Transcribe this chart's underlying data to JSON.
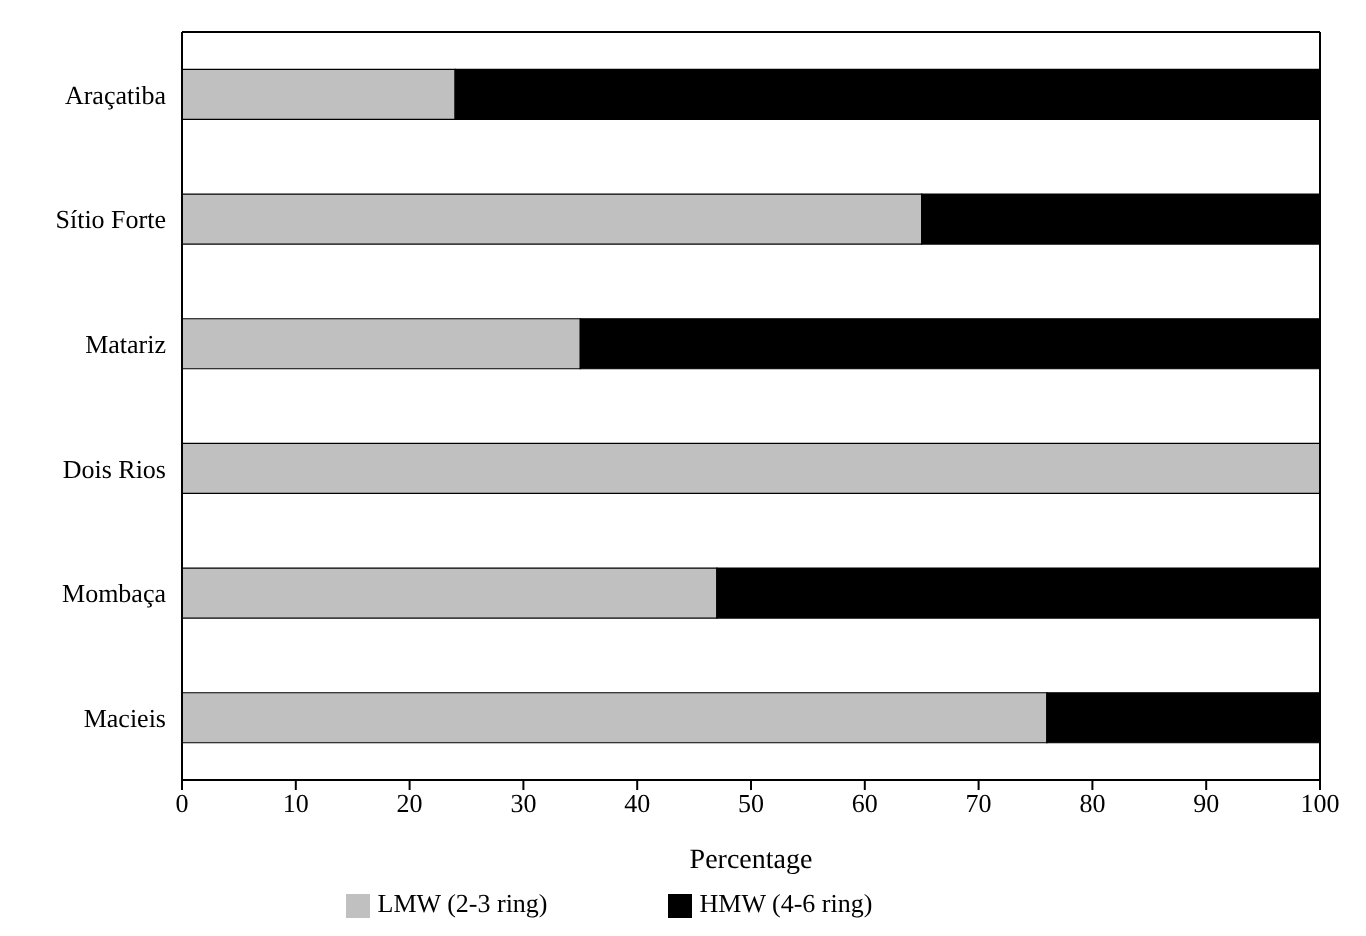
{
  "chart_data": {
    "type": "bar",
    "orientation": "horizontal",
    "stacked": true,
    "xlabel": "Percentage",
    "categories": [
      "Araçatiba",
      "Sítio Forte",
      "Matariz",
      "Dois Rios",
      "Mombaça",
      "Macieis"
    ],
    "series": [
      {
        "name": "LMW (2-3 ring)",
        "color": "#c0c0c0",
        "values": [
          24,
          65,
          35,
          100,
          47,
          76
        ]
      },
      {
        "name": "HMW (4-6 ring)",
        "color": "#000000",
        "values": [
          76,
          35,
          65,
          0,
          53,
          24
        ]
      }
    ],
    "xlim": [
      0,
      100
    ],
    "xticks": [
      0,
      10,
      20,
      30,
      40,
      50,
      60,
      70,
      80,
      90,
      100
    ],
    "grid": false,
    "legend": "bottom"
  }
}
